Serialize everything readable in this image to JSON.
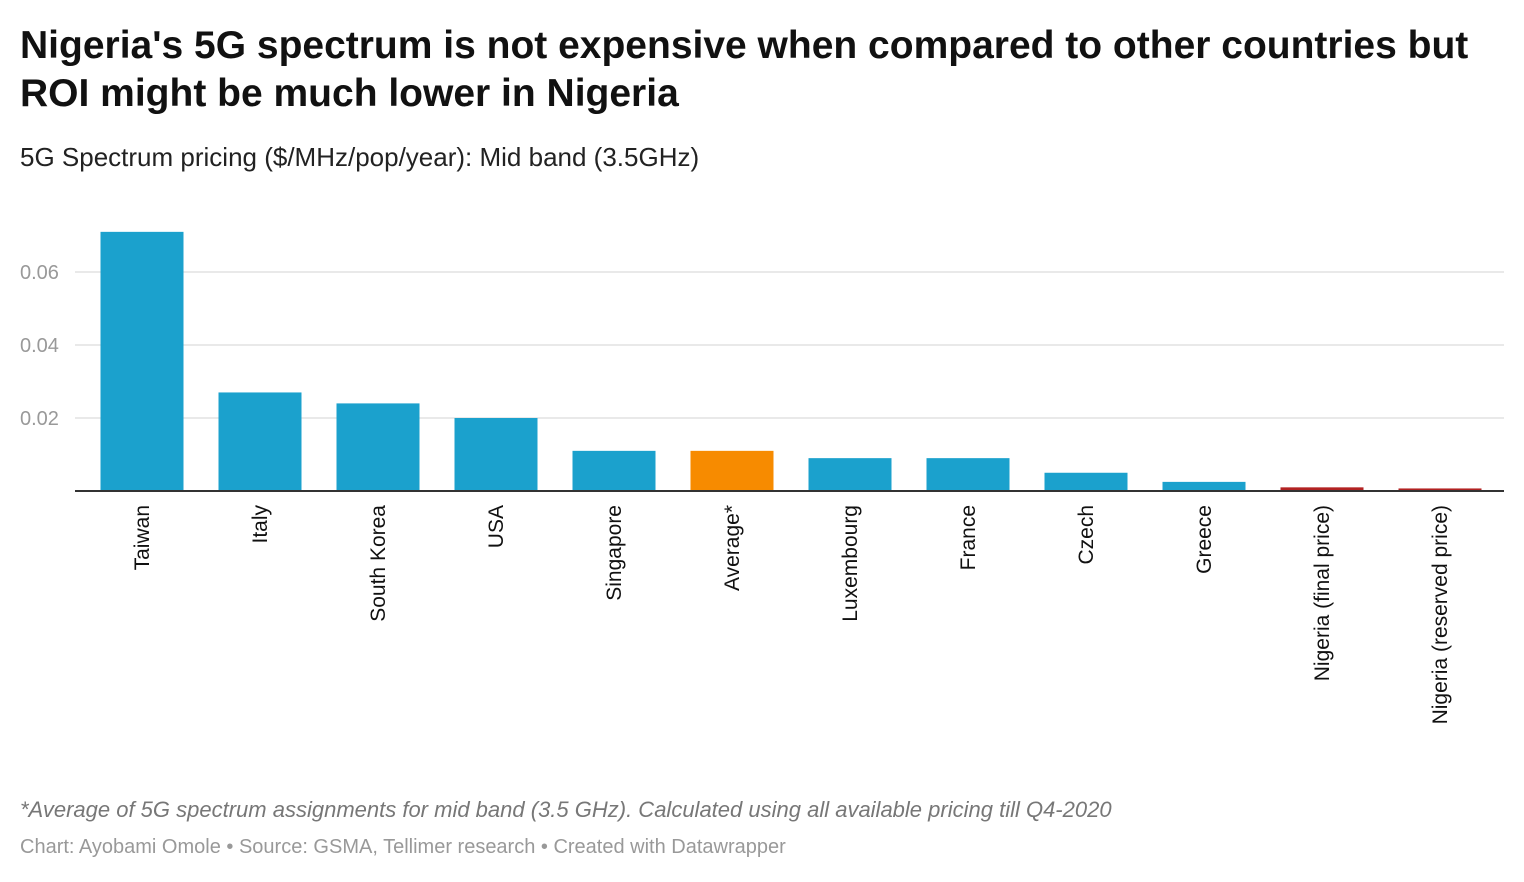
{
  "header": {
    "title": "Nigeria's 5G spectrum is not expensive when compared to other countries but ROI might be much lower in Nigeria",
    "subtitle": "5G Spectrum pricing ($/MHz/pop/year): Mid band (3.5GHz)"
  },
  "footer": {
    "note": "*Average of 5G spectrum assignments for mid band (3.5 GHz). Calculated using all available pricing till Q4-2020",
    "credits": "Chart: Ayobami Omole • Source: GSMA, Tellimer research • Created with Datawrapper"
  },
  "colors": {
    "default": "#1ba1cd",
    "average": "#f78b00",
    "nigeria": "#b22222",
    "grid": "#e2e2e2",
    "baseline": "#333333"
  },
  "chart_data": {
    "type": "bar",
    "title": "Nigeria's 5G spectrum is not expensive when compared to other countries but ROI might be much lower in Nigeria",
    "subtitle": "5G Spectrum pricing ($/MHz/pop/year): Mid band (3.5GHz)",
    "categories": [
      "Taiwan",
      "Italy",
      "South Korea",
      "USA",
      "Singapore",
      "Average*",
      "Luxembourg",
      "France",
      "Czech",
      "Greece",
      "Nigeria (final price)",
      "Nigeria (reserved price)"
    ],
    "values": [
      0.071,
      0.027,
      0.024,
      0.02,
      0.011,
      0.011,
      0.009,
      0.009,
      0.005,
      0.0025,
      0.001,
      0.0007
    ],
    "color_keys": [
      "default",
      "default",
      "default",
      "default",
      "default",
      "average",
      "default",
      "default",
      "default",
      "default",
      "nigeria",
      "nigeria"
    ],
    "yticks": [
      0.02,
      0.04,
      0.06
    ],
    "ytick_labels": [
      "0.02",
      "0.04",
      "0.06"
    ],
    "ylim": [
      0,
      0.072
    ],
    "xlabel": "",
    "ylabel": "",
    "grid": true
  }
}
